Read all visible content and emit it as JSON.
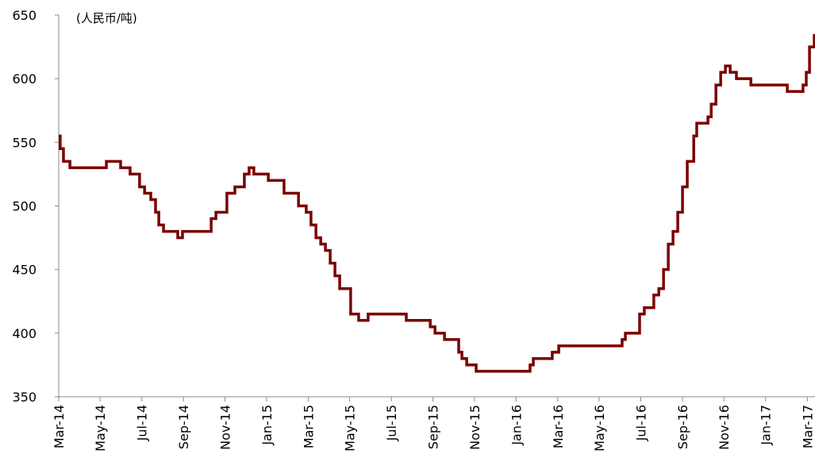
{
  "chart_data": {
    "type": "line",
    "step": true,
    "annotation": "(人民币/吨)",
    "x": [
      2014.167,
      2014.173,
      2014.186,
      2014.212,
      2014.358,
      2014.415,
      2014.453,
      2014.491,
      2014.511,
      2014.536,
      2014.555,
      2014.568,
      2014.587,
      2014.644,
      2014.663,
      2014.778,
      2014.797,
      2014.841,
      2014.873,
      2014.911,
      2014.93,
      2014.949,
      2015.007,
      2015.07,
      2015.128,
      2015.159,
      2015.178,
      2015.198,
      2015.217,
      2015.236,
      2015.255,
      2015.274,
      2015.293,
      2015.337,
      2015.369,
      2015.407,
      2015.56,
      2015.656,
      2015.675,
      2015.713,
      2015.77,
      2015.783,
      2015.802,
      2015.84,
      2016.056,
      2016.069,
      2016.145,
      2016.171,
      2016.425,
      2016.438,
      2016.495,
      2016.514,
      2016.552,
      2016.572,
      2016.591,
      2016.61,
      2016.629,
      2016.648,
      2016.667,
      2016.686,
      2016.712,
      2016.724,
      2016.769,
      2016.782,
      2016.801,
      2016.82,
      2016.839,
      2016.858,
      2016.883,
      2016.941,
      2017.087,
      2017.15,
      2017.163,
      2017.176,
      2017.195
    ],
    "series": [
      {
        "color": "#7a0000",
        "values": [
          555,
          545,
          535,
          530,
          535,
          530,
          525,
          515,
          510,
          505,
          495,
          485,
          480,
          475,
          480,
          490,
          495,
          510,
          515,
          525,
          530,
          525,
          520,
          510,
          500,
          495,
          485,
          475,
          470,
          465,
          455,
          445,
          435,
          415,
          410,
          415,
          410,
          405,
          400,
          395,
          385,
          380,
          375,
          370,
          375,
          380,
          385,
          390,
          395,
          400,
          415,
          420,
          430,
          435,
          450,
          470,
          480,
          495,
          515,
          535,
          555,
          565,
          570,
          580,
          595,
          605,
          610,
          605,
          600,
          595,
          590,
          595,
          605,
          625,
          635
        ]
      }
    ],
    "xlim": [
      2014.167,
      2017.198
    ],
    "xticks": [
      {
        "value": 2014.167,
        "label": "Mar-14"
      },
      {
        "value": 2014.333,
        "label": "May-14"
      },
      {
        "value": 2014.5,
        "label": "Jul-14"
      },
      {
        "value": 2014.667,
        "label": "Sep-14"
      },
      {
        "value": 2014.833,
        "label": "Nov-14"
      },
      {
        "value": 2015.0,
        "label": "Jan-15"
      },
      {
        "value": 2015.167,
        "label": "Mar-15"
      },
      {
        "value": 2015.333,
        "label": "May-15"
      },
      {
        "value": 2015.5,
        "label": "Jul-15"
      },
      {
        "value": 2015.667,
        "label": "Sep-15"
      },
      {
        "value": 2015.833,
        "label": "Nov-15"
      },
      {
        "value": 2016.0,
        "label": "Jan-16"
      },
      {
        "value": 2016.167,
        "label": "Mar-16"
      },
      {
        "value": 2016.333,
        "label": "May-16"
      },
      {
        "value": 2016.5,
        "label": "Jul-16"
      },
      {
        "value": 2016.667,
        "label": "Sep-16"
      },
      {
        "value": 2016.833,
        "label": "Nov-16"
      },
      {
        "value": 2017.0,
        "label": "Jan-17"
      },
      {
        "value": 2017.167,
        "label": "Mar-17"
      }
    ],
    "ylim": [
      350,
      650
    ],
    "yticks": [
      350,
      400,
      450,
      500,
      550,
      600,
      650
    ]
  }
}
